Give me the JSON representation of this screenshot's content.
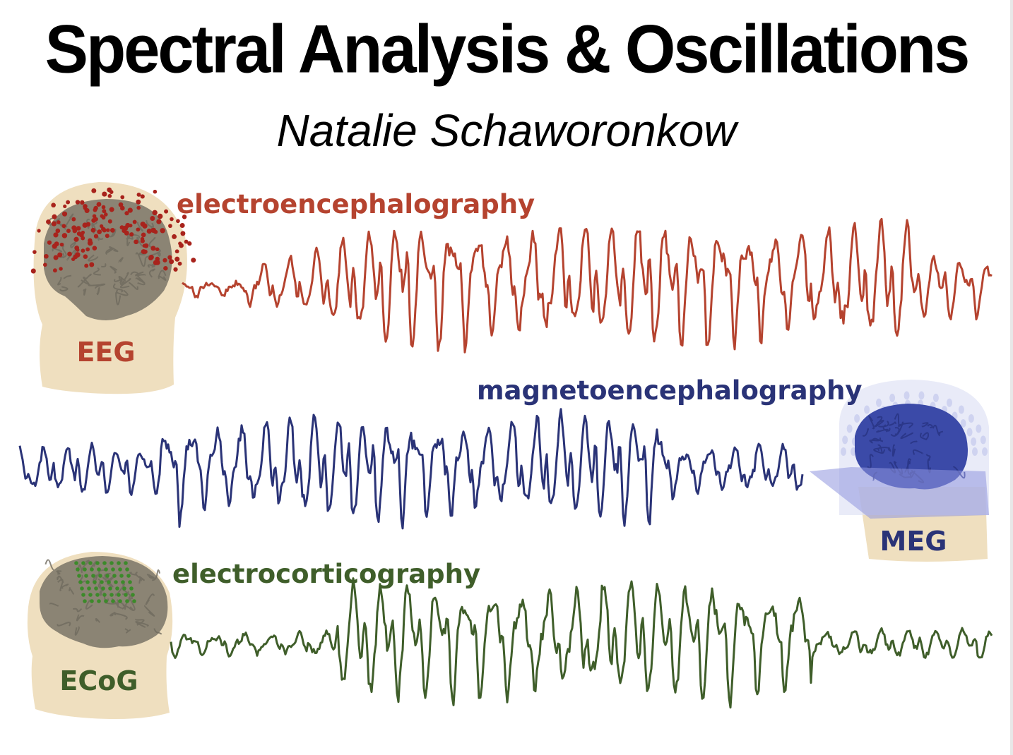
{
  "title": "Spectral Analysis & Oscillations",
  "author": "Natalie Schaworonkow",
  "panels": [
    {
      "modality": "electroencephalography",
      "abbr": "EEG",
      "color": "#b5432f",
      "sensor_color": "#a8231c",
      "head_icon": "head-eeg-icon"
    },
    {
      "modality": "magnetoencephalography",
      "abbr": "MEG",
      "color": "#2a3377",
      "sensor_color": "#5a67c8",
      "head_icon": "head-meg-icon"
    },
    {
      "modality": "electrocorticography",
      "abbr": "ECoG",
      "color": "#3f5e2a",
      "sensor_color": "#3c8a2a",
      "head_icon": "head-ecog-icon"
    }
  ],
  "colors": {
    "skin": "#efdfbf",
    "brain": "#8b8474",
    "background": "#ffffff"
  }
}
